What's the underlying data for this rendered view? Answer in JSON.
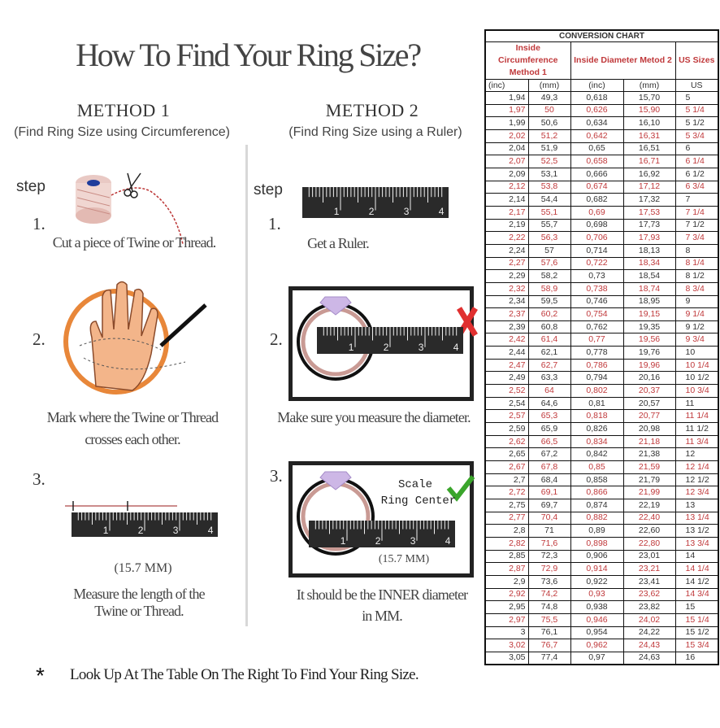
{
  "title": "How To Find Your Ring Size?",
  "method1": {
    "heading": "METHOD 1",
    "subtitle": "(Find Ring Size using Circumference)",
    "step_label": "step",
    "steps": [
      {
        "num": "1.",
        "lines": [
          "Cut a piece of  Twine or Thread."
        ]
      },
      {
        "num": "2.",
        "lines": [
          "Mark where the Twine or Thread",
          "crosses each other."
        ]
      },
      {
        "num": "3.",
        "measure": "(15.7 MM)",
        "lines": [
          "Measure the length of the",
          "Twine or Thread."
        ]
      }
    ]
  },
  "method2": {
    "heading": "METHOD 2",
    "subtitle": "(Find Ring Size using a Ruler)",
    "step_label": "step",
    "steps": [
      {
        "num": "1.",
        "lines": [
          "Get a Ruler."
        ]
      },
      {
        "num": "2.",
        "lines": [
          "Make sure you measure the diameter."
        ]
      },
      {
        "num": "3.",
        "scale": "Scale",
        "ring_center": "Ring Center",
        "measure": "(15.7 MM)",
        "lines": [
          "It should be the INNER diameter",
          "in MM."
        ]
      }
    ]
  },
  "ruler_labels": [
    "1",
    "2",
    "3",
    "4"
  ],
  "footer": {
    "bullet": "*",
    "text": "Look Up At The Table On The Right To Find Your Ring Size."
  },
  "colors": {
    "accent_red": "#c0393b",
    "check_green": "#3aa52b",
    "ring_rose": "#c99a94",
    "hand_orange": "#e8873a"
  },
  "icons": {
    "spool": "thread-spool-icon",
    "scissors": "scissors-icon",
    "hand": "hand-icon",
    "pen": "pen-icon",
    "diamond": "diamond-icon",
    "cross": "red-x-icon",
    "check": "green-check-icon"
  },
  "table": {
    "title": "CONVERSION CHART",
    "group_headers": [
      "Inside Circumference Method 1",
      "Inside Diameter Metod 2",
      "US Sizes"
    ],
    "columns": [
      "(inc)",
      "(mm)",
      "(inc)",
      "(mm)",
      "US"
    ],
    "rows": [
      [
        "1,94",
        "49,3",
        "0,618",
        "15,70",
        "5"
      ],
      [
        "1,97",
        "50",
        "0,626",
        "15,90",
        "5 1/4"
      ],
      [
        "1,99",
        "50,6",
        "0,634",
        "16,10",
        "5 1/2"
      ],
      [
        "2,02",
        "51,2",
        "0,642",
        "16,31",
        "5 3/4"
      ],
      [
        "2,04",
        "51,9",
        "0,65",
        "16,51",
        "6"
      ],
      [
        "2,07",
        "52,5",
        "0,658",
        "16,71",
        "6 1/4"
      ],
      [
        "2,09",
        "53,1",
        "0,666",
        "16,92",
        "6 1/2"
      ],
      [
        "2,12",
        "53,8",
        "0,674",
        "17,12",
        "6 3/4"
      ],
      [
        "2,14",
        "54,4",
        "0,682",
        "17,32",
        "7"
      ],
      [
        "2,17",
        "55,1",
        "0,69",
        "17,53",
        "7 1/4"
      ],
      [
        "2,19",
        "55,7",
        "0,698",
        "17,73",
        "7 1/2"
      ],
      [
        "2,22",
        "56,3",
        "0,706",
        "17,93",
        "7 3/4"
      ],
      [
        "2,24",
        "57",
        "0,714",
        "18,13",
        "8"
      ],
      [
        "2,27",
        "57,6",
        "0,722",
        "18,34",
        "8 1/4"
      ],
      [
        "2,29",
        "58,2",
        "0,73",
        "18,54",
        "8 1/2"
      ],
      [
        "2,32",
        "58,9",
        "0,738",
        "18,74",
        "8 3/4"
      ],
      [
        "2,34",
        "59,5",
        "0,746",
        "18,95",
        "9"
      ],
      [
        "2,37",
        "60,2",
        "0,754",
        "19,15",
        "9 1/4"
      ],
      [
        "2,39",
        "60,8",
        "0,762",
        "19,35",
        "9 1/2"
      ],
      [
        "2,42",
        "61,4",
        "0,77",
        "19,56",
        "9 3/4"
      ],
      [
        "2,44",
        "62,1",
        "0,778",
        "19,76",
        "10"
      ],
      [
        "2,47",
        "62,7",
        "0,786",
        "19,96",
        "10 1/4"
      ],
      [
        "2,49",
        "63,3",
        "0,794",
        "20,16",
        "10 1/2"
      ],
      [
        "2,52",
        "64",
        "0,802",
        "20,37",
        "10 3/4"
      ],
      [
        "2,54",
        "64,6",
        "0,81",
        "20,57",
        "11"
      ],
      [
        "2,57",
        "65,3",
        "0,818",
        "20,77",
        "11 1/4"
      ],
      [
        "2,59",
        "65,9",
        "0,826",
        "20,98",
        "11 1/2"
      ],
      [
        "2,62",
        "66,5",
        "0,834",
        "21,18",
        "11 3/4"
      ],
      [
        "2,65",
        "67,2",
        "0,842",
        "21,38",
        "12"
      ],
      [
        "2,67",
        "67,8",
        "0,85",
        "21,59",
        "12 1/4"
      ],
      [
        "2,7",
        "68,4",
        "0,858",
        "21,79",
        "12 1/2"
      ],
      [
        "2,72",
        "69,1",
        "0,866",
        "21,99",
        "12 3/4"
      ],
      [
        "2,75",
        "69,7",
        "0,874",
        "22,19",
        "13"
      ],
      [
        "2,77",
        "70,4",
        "0,882",
        "22,40",
        "13 1/4"
      ],
      [
        "2,8",
        "71",
        "0,89",
        "22,60",
        "13 1/2"
      ],
      [
        "2,82",
        "71,6",
        "0,898",
        "22,80",
        "13 3/4"
      ],
      [
        "2,85",
        "72,3",
        "0,906",
        "23,01",
        "14"
      ],
      [
        "2,87",
        "72,9",
        "0,914",
        "23,21",
        "14 1/4"
      ],
      [
        "2,9",
        "73,6",
        "0,922",
        "23,41",
        "14 1/2"
      ],
      [
        "2,92",
        "74,2",
        "0,93",
        "23,62",
        "14 3/4"
      ],
      [
        "2,95",
        "74,8",
        "0,938",
        "23,82",
        "15"
      ],
      [
        "2,97",
        "75,5",
        "0,946",
        "24,02",
        "15 1/4"
      ],
      [
        "3",
        "76,1",
        "0,954",
        "24,22",
        "15 1/2"
      ],
      [
        "3,02",
        "76,7",
        "0,962",
        "24,43",
        "15 3/4"
      ],
      [
        "3,05",
        "77,4",
        "0,97",
        "24,63",
        "16"
      ]
    ]
  }
}
